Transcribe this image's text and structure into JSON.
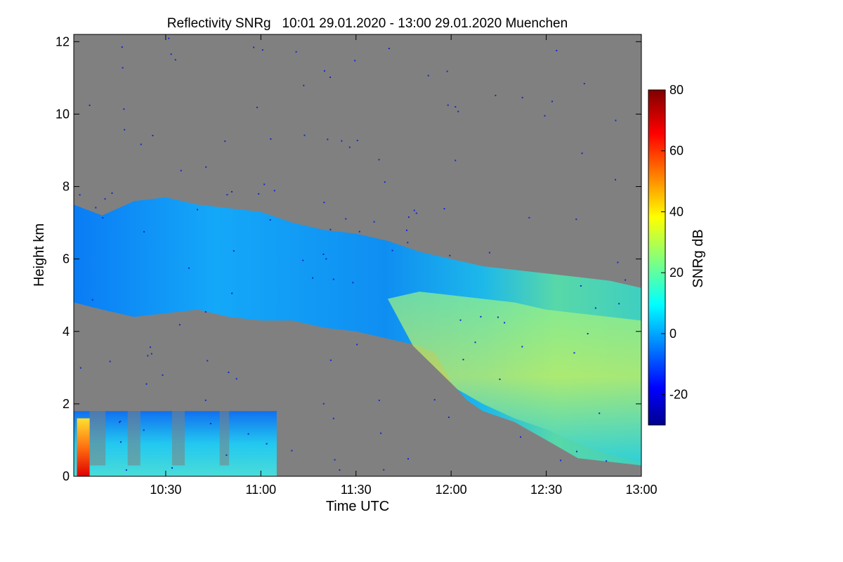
{
  "chart_data": {
    "type": "heatmap",
    "title": "Reflectivity SNRg   10:01 29.01.2020 - 13:00 29.01.2020 Muenchen",
    "xlabel": "Time UTC",
    "ylabel": "Height km",
    "xlim_minutes_utc": [
      601,
      780
    ],
    "ylim": [
      0,
      12.2
    ],
    "x_ticks": [
      {
        "value": 630,
        "label": "10:30"
      },
      {
        "value": 660,
        "label": "11:00"
      },
      {
        "value": 690,
        "label": "11:30"
      },
      {
        "value": 720,
        "label": "12:00"
      },
      {
        "value": 750,
        "label": "12:30"
      },
      {
        "value": 780,
        "label": "13:00"
      }
    ],
    "y_ticks": [
      0,
      2,
      4,
      6,
      8,
      10,
      12
    ],
    "background_color": "#808080",
    "colorbar": {
      "label": "SNRg dB",
      "range": [
        -30,
        80
      ],
      "ticks": [
        80,
        60,
        40,
        20,
        0,
        -20
      ],
      "colormap": "jet"
    },
    "features": {
      "upper_cloud_layer": {
        "time_range": [
          "10:01",
          "13:00"
        ],
        "top_km": [
          [
            601,
            7.5
          ],
          [
            610,
            7.2
          ],
          [
            620,
            7.6
          ],
          [
            630,
            7.7
          ],
          [
            640,
            7.5
          ],
          [
            650,
            7.4
          ],
          [
            660,
            7.3
          ],
          [
            670,
            7.0
          ],
          [
            680,
            6.8
          ],
          [
            690,
            6.7
          ],
          [
            700,
            6.5
          ],
          [
            710,
            6.2
          ],
          [
            720,
            6.0
          ],
          [
            730,
            5.8
          ],
          [
            740,
            5.7
          ],
          [
            750,
            5.6
          ],
          [
            760,
            5.5
          ],
          [
            770,
            5.4
          ],
          [
            780,
            5.2
          ]
        ],
        "base_km": [
          [
            601,
            4.8
          ],
          [
            610,
            4.6
          ],
          [
            620,
            4.4
          ],
          [
            630,
            4.5
          ],
          [
            640,
            4.6
          ],
          [
            650,
            4.4
          ],
          [
            660,
            4.3
          ],
          [
            670,
            4.3
          ],
          [
            680,
            4.1
          ],
          [
            690,
            4.0
          ],
          [
            700,
            3.8
          ],
          [
            710,
            3.6
          ],
          [
            715,
            3.4
          ],
          [
            720,
            2.6
          ],
          [
            725,
            2.1
          ],
          [
            730,
            1.8
          ],
          [
            740,
            1.5
          ],
          [
            750,
            1.0
          ],
          [
            760,
            0.5
          ],
          [
            780,
            0.3
          ]
        ],
        "snrg_db_typical": 10
      },
      "low_precipitation_layer": {
        "time_range": [
          "10:01",
          "11:05"
        ],
        "top_km": 1.8,
        "snrg_db_typical": 10,
        "surface_max_snrg_db": 75
      }
    }
  }
}
